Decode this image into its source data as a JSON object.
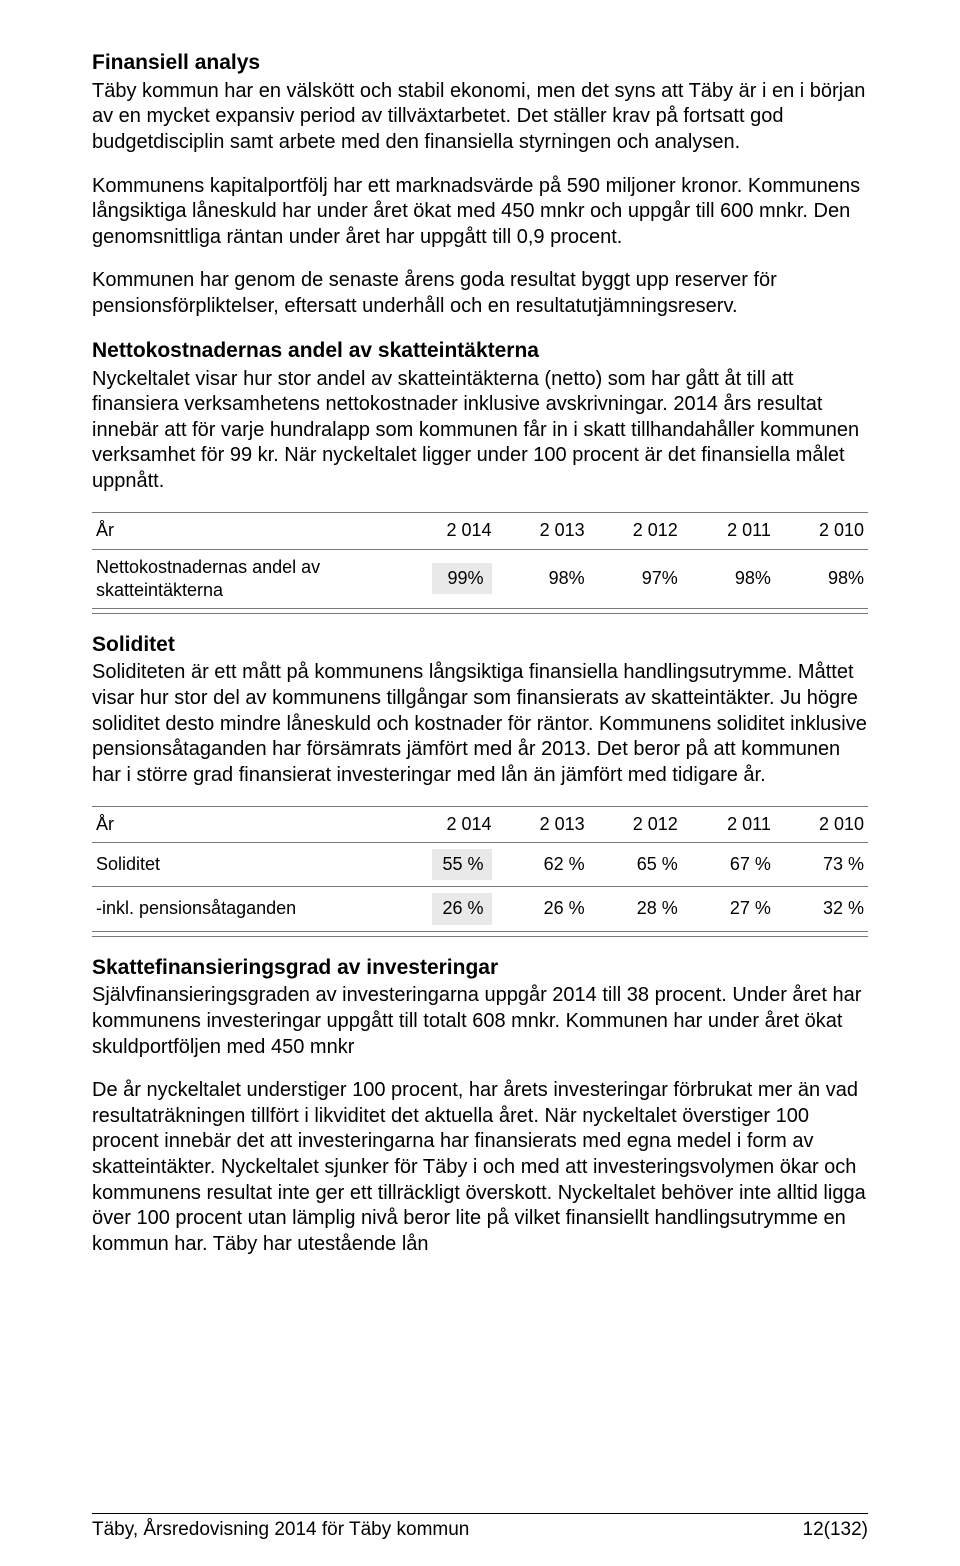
{
  "h_finansiell": "Finansiell analys",
  "p_fin_1": "Täby kommun har en välskött och stabil ekonomi, men det syns att Täby är i en i början av en mycket expansiv period av tillväxtarbetet. Det ställer krav på fortsatt god budgetdisciplin samt arbete med den finansiella styrningen och analysen.",
  "p_fin_2": "Kommunens kapitalportfölj har ett marknadsvärde på 590 miljoner kronor. Kommunens långsiktiga låneskuld har under året ökat med 450 mnkr och uppgår till 600 mnkr. Den genomsnittliga räntan under året har uppgått till 0,9 procent.",
  "p_fin_3": "Kommunen har genom de senaste årens goda resultat byggt upp reserver för pensionsförpliktelser, eftersatt underhåll och en resultatutjämningsreserv.",
  "h_netto": "Nettokostnadernas andel av skatteintäkterna",
  "p_netto": "Nyckeltalet visar hur stor andel av skatteintäkterna (netto) som har gått åt till att finansiera verksamhetens nettokostnader inklusive avskrivningar. 2014 års resultat innebär att för varje hundralapp som kommunen får in i skatt tillhandahåller kommunen verksamhet för 99 kr. När nyckeltalet ligger under 100 procent är det finansiella målet uppnått.",
  "t1": {
    "col_label": "År",
    "years": [
      "2 014",
      "2 013",
      "2 012",
      "2 011",
      "2 010"
    ],
    "row_label": "Nettokostnadernas andel av skatteintäkterna",
    "values": [
      "99%",
      "98%",
      "97%",
      "98%",
      "98%"
    ]
  },
  "h_soliditet": "Soliditet",
  "p_soliditet": "Soliditeten är ett mått på kommunens långsiktiga finansiella handlingsutrymme. Måttet visar hur stor del av kommunens tillgångar som finansierats av skatteintäkter. Ju högre soliditet desto mindre låneskuld och kostnader för räntor. Kommunens soliditet inklusive pensionsåtaganden har försämrats jämfört med år 2013. Det beror på att kommunen har i större grad finansierat investeringar med lån än jämfört med tidigare år.",
  "t2": {
    "col_label": "År",
    "years": [
      "2 014",
      "2 013",
      "2 012",
      "2 011",
      "2 010"
    ],
    "r1_label": "Soliditet",
    "r1_values": [
      "55 %",
      "62 %",
      "65 %",
      "67 %",
      "73 %"
    ],
    "r2_label": "-inkl. pensionsåtaganden",
    "r2_values": [
      "26 %",
      "26 %",
      "28 %",
      "27 %",
      "32 %"
    ]
  },
  "h_skatt": "Skattefinansieringsgrad av investeringar",
  "p_skatt_1": "Självfinansieringsgraden av investeringarna uppgår 2014 till 38 procent. Under året har kommunens investeringar uppgått till totalt 608 mnkr. Kommunen har under året ökat skuldportföljen med 450 mnkr",
  "p_skatt_2": "De år nyckeltalet understiger 100 procent, har årets investeringar förbrukat mer än vad resultaträkningen tillfört i likviditet det aktuella året. När nyckeltalet överstiger 100 procent innebär det att investeringarna har finansierats med egna medel i form av skatteintäkter. Nyckeltalet sjunker för Täby i och med att investeringsvolymen ökar och kommunens resultat inte ger ett tillräckligt överskott. Nyckeltalet behöver inte alltid ligga över 100 procent utan lämplig nivå beror lite på vilket finansiellt handlingsutrymme en kommun har. Täby har utestående lån",
  "footer_left": "Täby, Årsredovisning 2014 för Täby kommun",
  "footer_right": "12(132)"
}
